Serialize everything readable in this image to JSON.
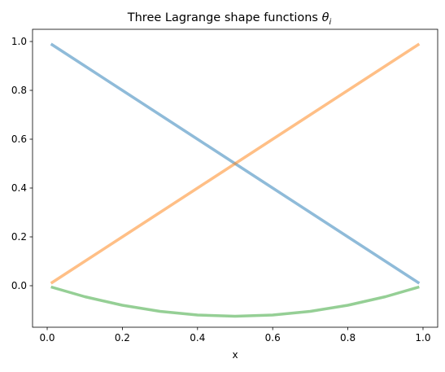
{
  "chart_data": {
    "type": "line",
    "title_plain": "Three Lagrange shape functions ",
    "title_math": "θ",
    "title_sub": "i",
    "xlabel": "x",
    "ylabel": "",
    "xlim": [
      -0.039,
      1.039
    ],
    "ylim": [
      -0.17,
      1.05
    ],
    "xticks": [
      0.0,
      0.2,
      0.4,
      0.6,
      0.8,
      1.0
    ],
    "xtick_labels": [
      "0.0",
      "0.2",
      "0.4",
      "0.6",
      "0.8",
      "1.0"
    ],
    "yticks": [
      0.0,
      0.2,
      0.4,
      0.6,
      0.8,
      1.0
    ],
    "ytick_labels": [
      "0.0",
      "0.2",
      "0.4",
      "0.6",
      "0.8",
      "1.0"
    ],
    "grid": false,
    "x": [
      0.01,
      0.1,
      0.2,
      0.3,
      0.4,
      0.5,
      0.6,
      0.7,
      0.8,
      0.9,
      0.99
    ],
    "series": [
      {
        "color": "#1f77b4",
        "values": [
          0.99,
          0.9,
          0.8,
          0.7,
          0.6,
          0.5,
          0.4,
          0.3,
          0.2,
          0.1,
          0.01
        ]
      },
      {
        "color": "#ff7f0e",
        "values": [
          0.01,
          0.1,
          0.2,
          0.3,
          0.4,
          0.5,
          0.6,
          0.7,
          0.8,
          0.9,
          0.99
        ]
      },
      {
        "color": "#2ca02c",
        "values": [
          -0.005,
          -0.045,
          -0.08,
          -0.105,
          -0.12,
          -0.125,
          -0.12,
          -0.105,
          -0.08,
          -0.045,
          -0.005
        ]
      }
    ]
  }
}
